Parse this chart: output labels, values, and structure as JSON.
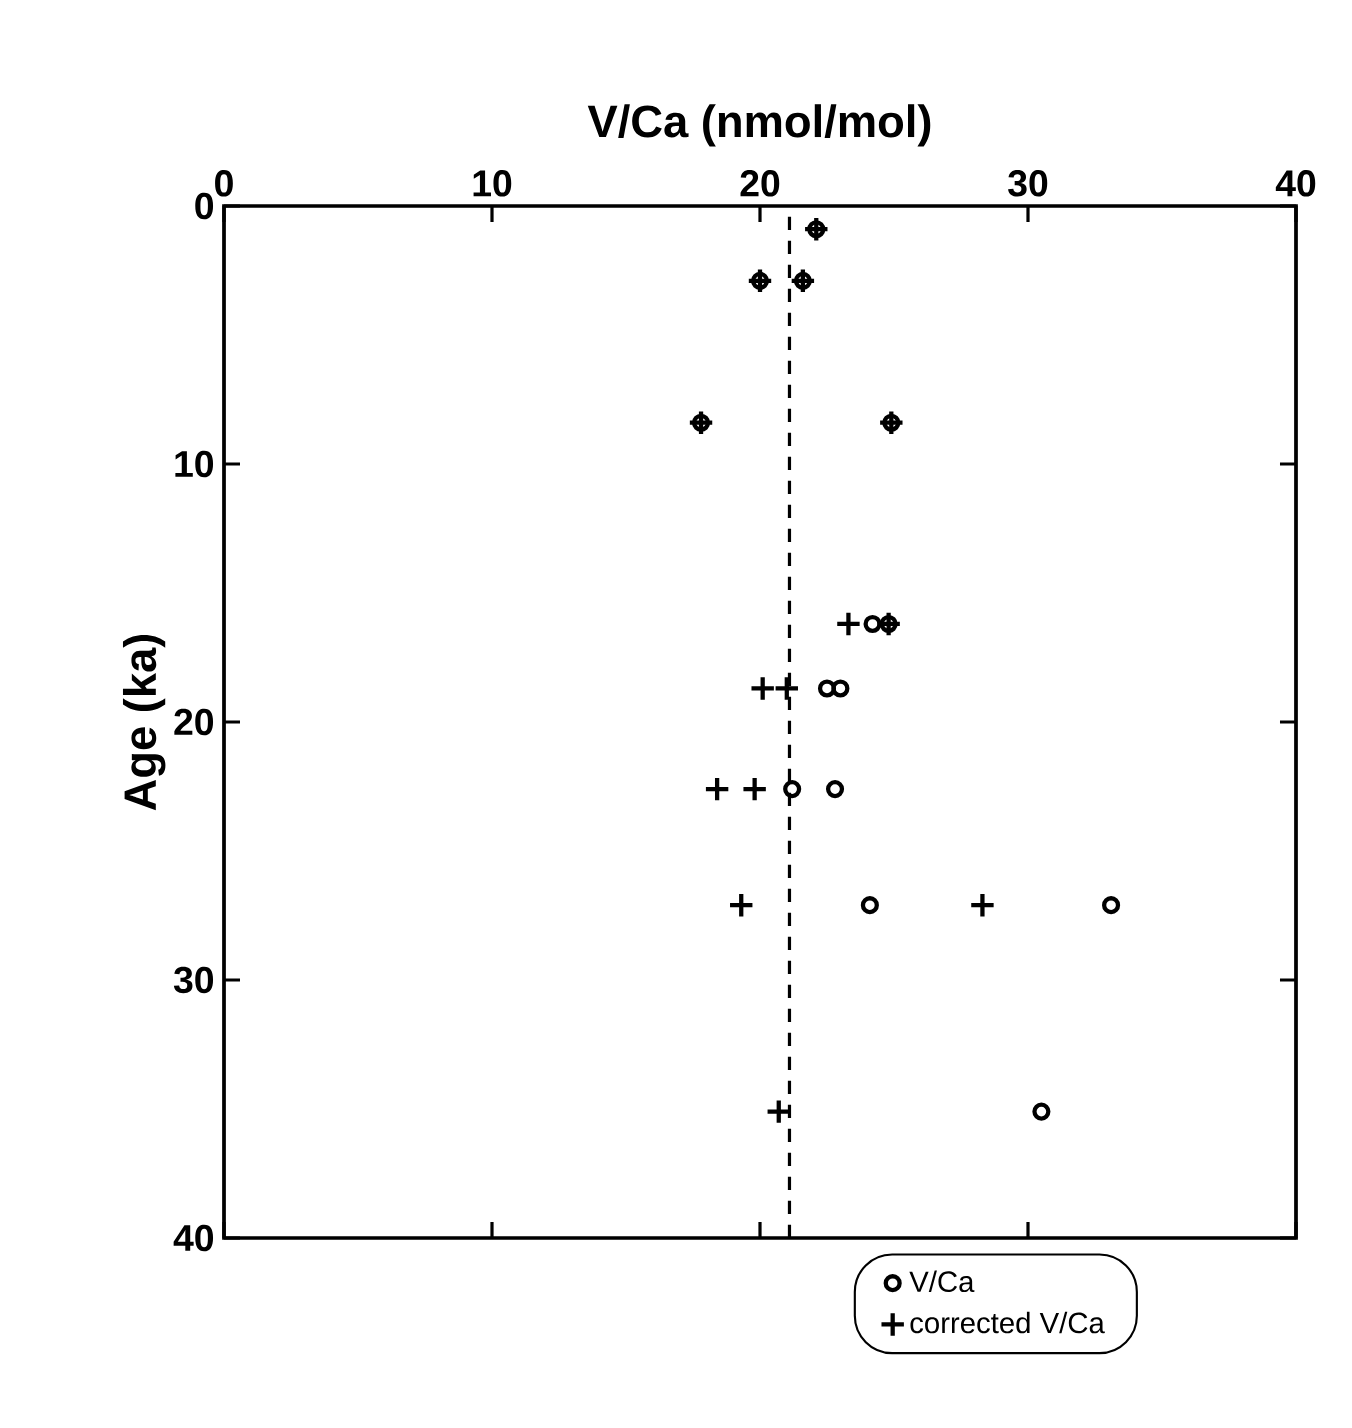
{
  "chart_data": {
    "type": "scatter",
    "xlabel": "V/Ca (nmol/mol)",
    "ylabel": "Age (ka)",
    "xlim": [
      0,
      40
    ],
    "xticks": [
      0,
      10,
      20,
      30,
      40
    ],
    "ylim": [
      40,
      0
    ],
    "yticks": [
      0,
      10,
      20,
      30,
      40
    ],
    "legend": "bottom right",
    "grid": false,
    "series": [
      {
        "name": "V/Ca",
        "color": "#000000",
        "marker": "circle",
        "x": [
          22.1,
          20.0,
          21.6,
          17.8,
          24.9,
          24.2,
          24.8,
          22.5,
          23.0,
          21.2,
          22.8,
          24.1,
          33.1,
          30.5
        ],
        "values": [
          0.9,
          2.9,
          2.9,
          8.4,
          8.4,
          16.2,
          16.2,
          18.7,
          18.7,
          22.6,
          22.6,
          27.1,
          27.1,
          35.1
        ]
      },
      {
        "name": "corrected V/Ca",
        "color": "#000000",
        "marker": "cross",
        "x": [
          22.1,
          20.0,
          21.6,
          17.8,
          24.9,
          23.3,
          24.8,
          20.1,
          21.0,
          18.4,
          19.8,
          19.3,
          28.3,
          20.7
        ],
        "values": [
          0.9,
          2.9,
          2.9,
          8.4,
          8.4,
          16.2,
          16.2,
          18.7,
          18.7,
          22.6,
          22.6,
          27.1,
          27.1,
          35.1
        ]
      }
    ],
    "ref_lines": [
      {
        "axis": "x",
        "value": 21.1,
        "color": "#000000",
        "line_style": "dashed"
      }
    ]
  }
}
